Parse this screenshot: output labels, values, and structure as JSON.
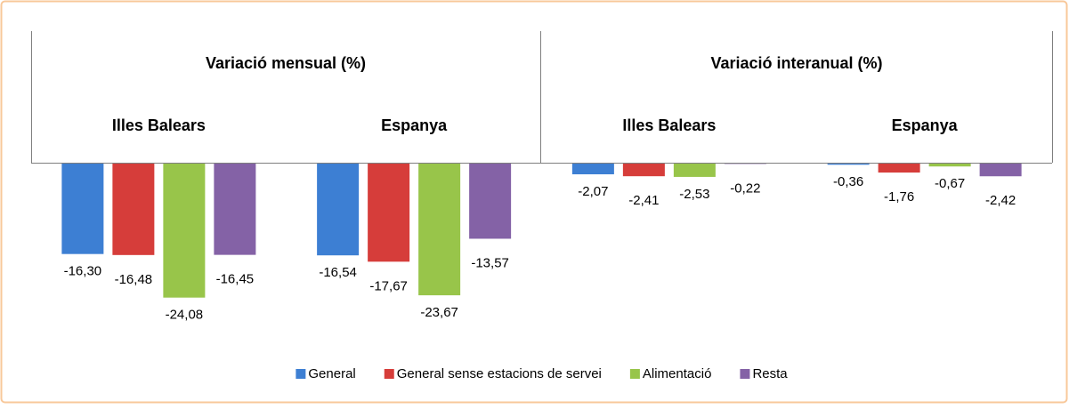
{
  "chart_data": {
    "type": "bar",
    "group_labels": [
      "Variació mensual (%)",
      "Variació interanual (%)"
    ],
    "categories": [
      "Illes Balears",
      "Espanya",
      "Illes Balears",
      "Espanya"
    ],
    "series": [
      {
        "name": "General",
        "color": "#3d7fd3",
        "values": [
          -16.3,
          -16.54,
          -2.07,
          -0.36
        ],
        "value_labels": [
          "-16,30",
          "-16,54",
          "-2,07",
          "-0,36"
        ]
      },
      {
        "name": "General sense estacions de servei",
        "color": "#d63d3a",
        "values": [
          -16.48,
          -17.67,
          -2.41,
          -1.76
        ],
        "value_labels": [
          "-16,48",
          "-17,67",
          "-2,41",
          "-1,76"
        ]
      },
      {
        "name": "Alimentació",
        "color": "#98c54a",
        "values": [
          -24.08,
          -23.67,
          -2.53,
          -0.67
        ],
        "value_labels": [
          "-24,08",
          "-23,67",
          "-2,53",
          "-0,67"
        ]
      },
      {
        "name": "Resta",
        "color": "#8462a6",
        "values": [
          -16.45,
          -13.57,
          -0.22,
          -2.42
        ],
        "value_labels": [
          "-16,45",
          "-13,57",
          "-0,22",
          "-2,42"
        ]
      }
    ],
    "ylim": [
      -30,
      0
    ]
  }
}
